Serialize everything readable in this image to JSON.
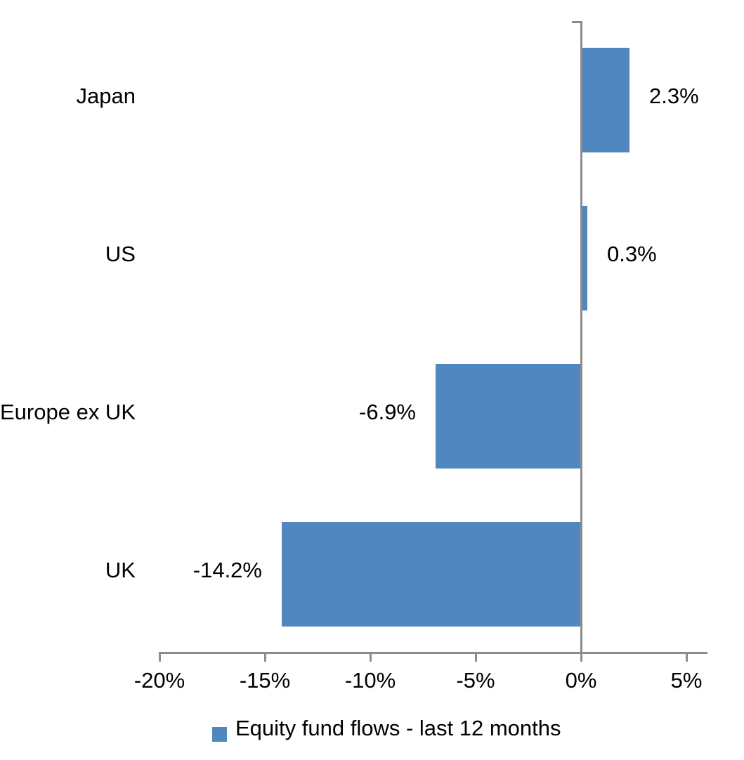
{
  "chart_data": {
    "type": "bar",
    "orientation": "horizontal",
    "title": "",
    "xlabel": "",
    "ylabel": "",
    "categories": [
      "Japan",
      "US",
      "Europe ex UK",
      "UK"
    ],
    "series": [
      {
        "name": "Equity fund flows - last 12 months",
        "values": [
          2.3,
          0.3,
          -6.9,
          -14.2
        ]
      }
    ],
    "value_labels": [
      "2.3%",
      "0.3%",
      "-6.9%",
      "-14.2%"
    ],
    "xlim": [
      -20,
      6
    ],
    "xticks": [
      -20,
      -15,
      -10,
      -5,
      0,
      5
    ],
    "xtick_labels": [
      "-20%",
      "-15%",
      "-10%",
      "-5%",
      "0%",
      "5%"
    ],
    "grid": false,
    "legend_position": "bottom-center",
    "bar_color": "#4F87BE",
    "axis_color": "#8C8C8C",
    "text_color": "#000000"
  },
  "legend": {
    "swatch_color": "#4F87BE",
    "label": "Equity fund flows - last 12 months"
  }
}
